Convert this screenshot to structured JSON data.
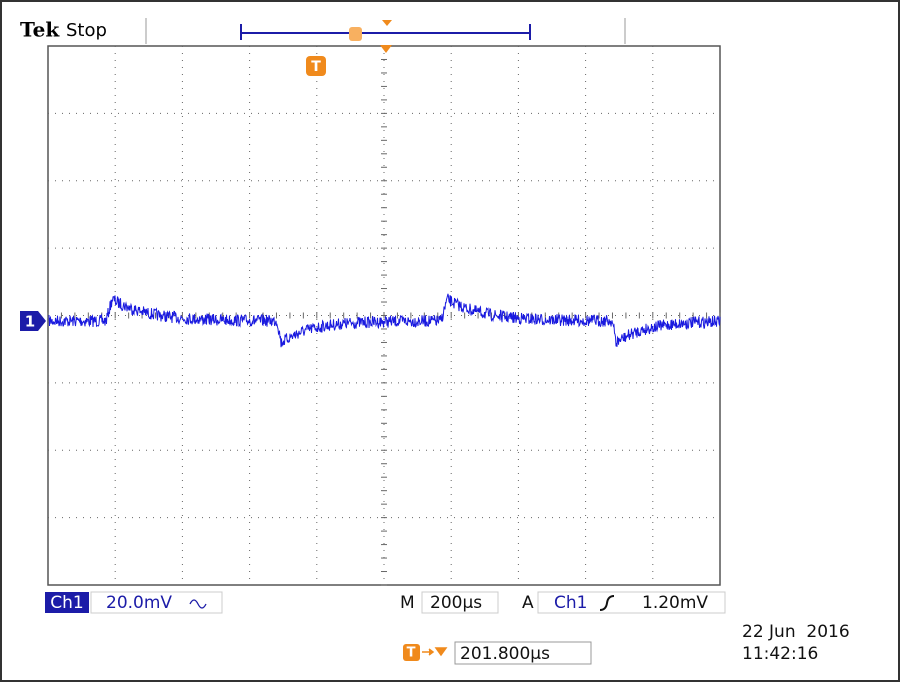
{
  "header": {
    "brand": "Tek",
    "status": "Stop",
    "trigger_marker": "T"
  },
  "channel_marker": "1",
  "readout": {
    "channel": "Ch1",
    "scale": "20.0mV",
    "timebase_label": "M",
    "timebase": "200µs",
    "trigger_label": "A",
    "trigger_source": "Ch1",
    "trigger_level": "1.20mV",
    "trigger_position_marker": "T",
    "trigger_position": "201.800µs"
  },
  "timestamp": {
    "date": "22 Jun  2016",
    "time": "11:42:16"
  }
}
